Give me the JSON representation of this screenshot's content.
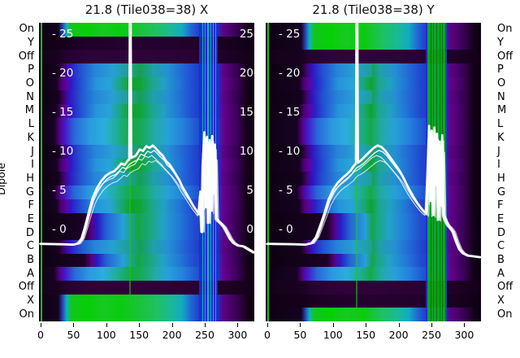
{
  "chart_data": {
    "type": "heatmap",
    "ylabel": "Dipole",
    "curve_color": "#ffffff",
    "row_labels": [
      "On",
      "Y",
      "Off",
      "P",
      "O",
      "N",
      "M",
      "L",
      "K",
      "J",
      "I",
      "H",
      "G",
      "F",
      "E",
      "D",
      "C",
      "B",
      "A",
      "Off",
      "X",
      "On"
    ],
    "x_ticks": [
      0,
      50,
      100,
      150,
      200,
      250,
      300
    ],
    "x_range": [
      0,
      325
    ],
    "inner_y_ticks": {
      "values": [
        25,
        20,
        15,
        10,
        5,
        0
      ],
      "labels": [
        "- 25",
        "- 20",
        "- 15",
        "- 10",
        "- 5",
        "- 0"
      ]
    },
    "colormap_hint": "black-purple-blue-cyan-green",
    "profiles": {
      "bright": [
        [
          0,
          "#0d0112"
        ],
        [
          0.09,
          "#150320"
        ],
        [
          0.112,
          "#2a4cc8"
        ],
        [
          0.128,
          "#0ab4b4"
        ],
        [
          0.15,
          "#12c41e"
        ],
        [
          0.22,
          "#05cf05"
        ],
        [
          0.3,
          "#16ca20"
        ],
        [
          0.38,
          "#09cc0e"
        ],
        [
          0.46,
          "#18c434"
        ],
        [
          0.54,
          "#1ec25e"
        ],
        [
          0.61,
          "#19ba94"
        ],
        [
          0.665,
          "#12aac2"
        ],
        [
          0.705,
          "#2168d4"
        ],
        [
          0.75,
          "#2136cc"
        ],
        [
          0.83,
          "#1f30c8"
        ],
        [
          0.855,
          "#5c0385"
        ],
        [
          0.92,
          "#380154"
        ],
        [
          0.97,
          "#130218"
        ],
        [
          1,
          "#0c0110"
        ]
      ],
      "off": [
        [
          0,
          "#140218"
        ],
        [
          0.09,
          "#190120"
        ],
        [
          0.13,
          "#250230"
        ],
        [
          0.22,
          "#2d0338"
        ],
        [
          0.45,
          "#2f033a"
        ],
        [
          0.62,
          "#2b0335"
        ],
        [
          0.78,
          "#270231"
        ],
        [
          0.9,
          "#1c0124"
        ],
        [
          1,
          "#120117"
        ]
      ],
      "offdim": [
        [
          0,
          "#100114"
        ],
        [
          0.1,
          "#15011b"
        ],
        [
          0.2,
          "#1f0128"
        ],
        [
          0.45,
          "#250230"
        ],
        [
          0.7,
          "#22022c"
        ],
        [
          0.88,
          "#190121"
        ],
        [
          1,
          "#0e0112"
        ]
      ],
      "dipA": [
        [
          0,
          "#0e0113"
        ],
        [
          0.08,
          "#170221"
        ],
        [
          0.103,
          "#4b0274"
        ],
        [
          0.128,
          "#5e02a2"
        ],
        [
          0.15,
          "#2b1cc6"
        ],
        [
          0.2,
          "#2356d4"
        ],
        [
          0.265,
          "#2795da"
        ],
        [
          0.33,
          "#28a4d8"
        ],
        [
          0.385,
          "#18a86e"
        ],
        [
          0.43,
          "#0ca426"
        ],
        [
          0.475,
          "#12a43c"
        ],
        [
          0.525,
          "#1ba88a"
        ],
        [
          0.58,
          "#23a0c6"
        ],
        [
          0.65,
          "#2176d8"
        ],
        [
          0.72,
          "#2146d0"
        ],
        [
          0.79,
          "#1f2cc8"
        ],
        [
          0.83,
          "#2030cc"
        ],
        [
          0.855,
          "#620390"
        ],
        [
          0.915,
          "#40015f"
        ],
        [
          0.965,
          "#150119"
        ],
        [
          1,
          "#0b010f"
        ]
      ],
      "dipB": [
        [
          0,
          "#0d0111"
        ],
        [
          0.09,
          "#15021d"
        ],
        [
          0.115,
          "#43026a"
        ],
        [
          0.14,
          "#3212c0"
        ],
        [
          0.19,
          "#2350d0"
        ],
        [
          0.26,
          "#2585d8"
        ],
        [
          0.34,
          "#27a0d4"
        ],
        [
          0.42,
          "#1d9f92"
        ],
        [
          0.47,
          "#16a054"
        ],
        [
          0.53,
          "#1fa0aa"
        ],
        [
          0.6,
          "#2590d4"
        ],
        [
          0.68,
          "#2160d4"
        ],
        [
          0.75,
          "#2038ca"
        ],
        [
          0.83,
          "#1f30c6"
        ],
        [
          0.855,
          "#5e0288"
        ],
        [
          0.915,
          "#3a0158"
        ],
        [
          0.965,
          "#140119"
        ],
        [
          1,
          "#0b010f"
        ]
      ],
      "dipC": [
        [
          0,
          "#0e0113"
        ],
        [
          0.07,
          "#190225"
        ],
        [
          0.095,
          "#530282"
        ],
        [
          0.12,
          "#4418cc"
        ],
        [
          0.165,
          "#2a68d8"
        ],
        [
          0.235,
          "#2b9ade"
        ],
        [
          0.3,
          "#2aaede"
        ],
        [
          0.365,
          "#1fae92"
        ],
        [
          0.425,
          "#12aa3e"
        ],
        [
          0.48,
          "#16aa5a"
        ],
        [
          0.54,
          "#22aaaa"
        ],
        [
          0.6,
          "#27a0da"
        ],
        [
          0.67,
          "#2380da"
        ],
        [
          0.74,
          "#2150d2"
        ],
        [
          0.83,
          "#2038cc"
        ],
        [
          0.855,
          "#660290"
        ],
        [
          0.915,
          "#400160"
        ],
        [
          0.965,
          "#150119"
        ],
        [
          1,
          "#0c0110"
        ]
      ],
      "dipD": [
        [
          0,
          "#0d0111"
        ],
        [
          0.13,
          "#15021d"
        ],
        [
          0.21,
          "#1c0226"
        ],
        [
          0.245,
          "#560286"
        ],
        [
          0.27,
          "#2a18c4"
        ],
        [
          0.315,
          "#2462d6"
        ],
        [
          0.39,
          "#27a0d8"
        ],
        [
          0.46,
          "#16a448"
        ],
        [
          0.515,
          "#18a87a"
        ],
        [
          0.575,
          "#23a2ca"
        ],
        [
          0.655,
          "#2278d8"
        ],
        [
          0.725,
          "#2148d0"
        ],
        [
          0.83,
          "#2034ca"
        ],
        [
          0.855,
          "#62028e"
        ],
        [
          0.915,
          "#3c015c"
        ],
        [
          0.965,
          "#14011a"
        ],
        [
          1,
          "#0b010f"
        ]
      ]
    },
    "panels": [
      {
        "key": "X",
        "title": "21.8 (Tile038=38) X",
        "grad_shift": 0,
        "right_inner_tick_labels": [
          "25",
          "20",
          "15",
          "10",
          "5",
          "0"
        ],
        "row_profiles": [
          "bright",
          "offdim",
          "off",
          "dipB",
          "dipA",
          "dipB",
          "dipA",
          "dipC",
          "dipC",
          "dipB",
          "dipA",
          "dipB",
          "dipC",
          "dipA",
          "dipD",
          "dipD",
          "dipB",
          "dipD",
          "dipC",
          "off",
          "bright",
          "bright"
        ],
        "stripes": [
          {
            "x": 0.6,
            "w": 2,
            "color": "#1fc41f",
            "alpha": 0.95
          },
          {
            "x": 136,
            "w": 1.5,
            "color": "#1fc41f",
            "alpha": 0.55
          },
          {
            "x": 256,
            "w": 23,
            "color": "#1b2fd0",
            "alpha": 0.85
          },
          {
            "x": 247,
            "w": 1.2,
            "color": "#12c8c8",
            "alpha": 0.85
          },
          {
            "x": 251,
            "w": 1.2,
            "color": "#12c8c8",
            "alpha": 0.85
          },
          {
            "x": 255,
            "w": 1.2,
            "color": "#12c8c8",
            "alpha": 0.85
          },
          {
            "x": 259,
            "w": 1.2,
            "color": "#12c8c8",
            "alpha": 0.85
          },
          {
            "x": 263,
            "w": 1.2,
            "color": "#12c8c8",
            "alpha": 0.85
          },
          {
            "x": 267,
            "w": 1.2,
            "color": "#12c8c8",
            "alpha": 0.85
          }
        ],
        "spectrum": [
          [
            0,
            -1.9
          ],
          [
            30,
            -1.95
          ],
          [
            50,
            -2
          ],
          [
            57,
            -1.85
          ],
          [
            63,
            -1.2
          ],
          [
            68,
            0.2
          ],
          [
            73,
            2
          ],
          [
            79,
            3.9
          ],
          [
            85,
            5.1
          ],
          [
            92,
            6.1
          ],
          [
            99,
            6.8
          ],
          [
            106,
            7.2
          ],
          [
            112,
            7.4
          ],
          [
            118,
            7.9
          ],
          [
            123,
            8.4
          ],
          [
            128,
            8.2
          ],
          [
            133,
            8.8
          ],
          [
            135,
            8.9
          ],
          [
            135.9,
            27
          ],
          [
            137.1,
            27
          ],
          [
            138,
            9.1
          ],
          [
            145,
            9.4
          ],
          [
            151,
            10.2
          ],
          [
            156,
            10
          ],
          [
            161,
            10.6
          ],
          [
            166,
            10.4
          ],
          [
            171,
            10.7
          ],
          [
            176,
            10.3
          ],
          [
            181,
            9.8
          ],
          [
            186,
            9.4
          ],
          [
            191,
            8.7
          ],
          [
            196,
            8.3
          ],
          [
            201,
            7.7
          ],
          [
            206,
            7
          ],
          [
            211,
            6.3
          ],
          [
            216,
            5.4
          ],
          [
            221,
            4.7
          ],
          [
            227,
            3.8
          ],
          [
            233,
            2.9
          ],
          [
            238,
            2.3
          ],
          [
            241,
            1.9
          ],
          [
            243.5,
            4.8
          ],
          [
            245.5,
            -0.4
          ],
          [
            247.5,
            9.2
          ],
          [
            249.5,
            12.4
          ],
          [
            251.5,
            2.8
          ],
          [
            253.5,
            11.8
          ],
          [
            255.5,
            0.8
          ],
          [
            257.5,
            11.4
          ],
          [
            259.5,
            2.4
          ],
          [
            261.5,
            11.9
          ],
          [
            263.5,
            4.6
          ],
          [
            265.5,
            10.8
          ],
          [
            267.5,
            1.4
          ],
          [
            270,
            1.15
          ],
          [
            274,
            0.8
          ],
          [
            279,
            0.3
          ],
          [
            284,
            -0.5
          ],
          [
            289,
            -1.3
          ],
          [
            294,
            -1.8
          ],
          [
            300,
            -2.1
          ],
          [
            308,
            -2.2
          ],
          [
            316,
            -2.6
          ],
          [
            324,
            -3
          ]
        ]
      },
      {
        "key": "Y",
        "title": "21.8 (Tile038=38) Y",
        "grad_shift": 0.075,
        "right_inner_tick_labels": [],
        "row_profiles": [
          "bright",
          "bright",
          "off",
          "dipB",
          "dipA",
          "dipB",
          "dipA",
          "dipC",
          "dipC",
          "dipB",
          "dipA",
          "dipB",
          "dipC",
          "dipA",
          "dipD",
          "dipD",
          "dipB",
          "dipD",
          "dipC",
          "off",
          "offdim",
          "bright"
        ],
        "stripes": [
          {
            "x": 0.6,
            "w": 2,
            "color": "#1fc41f",
            "alpha": 0.95
          },
          {
            "x": 136,
            "w": 1.5,
            "color": "#1fc41f",
            "alpha": 0.55
          },
          {
            "x": 243,
            "w": 3,
            "color": "#1b2fd0",
            "alpha": 0.8
          },
          {
            "x": 258.5,
            "w": 24,
            "color": "#0ab412",
            "alpha": 0.88
          },
          {
            "x": 249,
            "w": 1.2,
            "color": "#056d0a",
            "alpha": 0.8
          },
          {
            "x": 253.5,
            "w": 1.2,
            "color": "#056d0a",
            "alpha": 0.8
          },
          {
            "x": 258,
            "w": 1.2,
            "color": "#056d0a",
            "alpha": 0.8
          },
          {
            "x": 262.5,
            "w": 1.2,
            "color": "#056d0a",
            "alpha": 0.8
          },
          {
            "x": 267,
            "w": 1.2,
            "color": "#056d0a",
            "alpha": 0.8
          },
          {
            "x": 272,
            "w": 2,
            "color": "#2133cc",
            "alpha": 0.8
          }
        ],
        "spectrum": [
          [
            0,
            -1.9
          ],
          [
            40,
            -1.95
          ],
          [
            58,
            -2
          ],
          [
            68,
            -1.8
          ],
          [
            75,
            -1
          ],
          [
            81,
            0.4
          ],
          [
            87,
            2
          ],
          [
            93,
            3.7
          ],
          [
            100,
            5
          ],
          [
            107,
            5.9
          ],
          [
            114,
            6.5
          ],
          [
            121,
            7
          ],
          [
            127,
            7.5
          ],
          [
            131,
            8
          ],
          [
            135,
            8.4
          ],
          [
            135.9,
            27
          ],
          [
            137.1,
            27
          ],
          [
            138,
            8.5
          ],
          [
            144,
            8.9
          ],
          [
            150,
            9.4
          ],
          [
            156,
            9.9
          ],
          [
            162,
            10.4
          ],
          [
            168,
            10.7
          ],
          [
            174,
            10.5
          ],
          [
            180,
            10
          ],
          [
            186,
            9.3
          ],
          [
            192,
            8.6
          ],
          [
            198,
            7.9
          ],
          [
            204,
            7.1
          ],
          [
            210,
            6.1
          ],
          [
            216,
            5.1
          ],
          [
            222,
            4.2
          ],
          [
            228,
            3.4
          ],
          [
            234,
            2.7
          ],
          [
            239,
            2.2
          ],
          [
            242,
            2
          ],
          [
            244.5,
            7.8
          ],
          [
            246.5,
            13.2
          ],
          [
            248.5,
            3.6
          ],
          [
            250.5,
            12.6
          ],
          [
            252.5,
            1.8
          ],
          [
            254.5,
            13
          ],
          [
            256.5,
            5.6
          ],
          [
            258.5,
            12.2
          ],
          [
            260.5,
            1.2
          ],
          [
            262.5,
            11.2
          ],
          [
            264.5,
            3
          ],
          [
            266.5,
            12
          ],
          [
            268.5,
            1.9
          ],
          [
            271,
            1.2
          ],
          [
            275,
            0.5
          ],
          [
            279,
            0.1
          ],
          [
            283,
            -0.4
          ],
          [
            288,
            -1.6
          ],
          [
            293,
            -2.6
          ],
          [
            298,
            -3.1
          ],
          [
            305,
            -3.4
          ],
          [
            315,
            -3.5
          ],
          [
            324,
            -3.6
          ]
        ]
      }
    ]
  }
}
